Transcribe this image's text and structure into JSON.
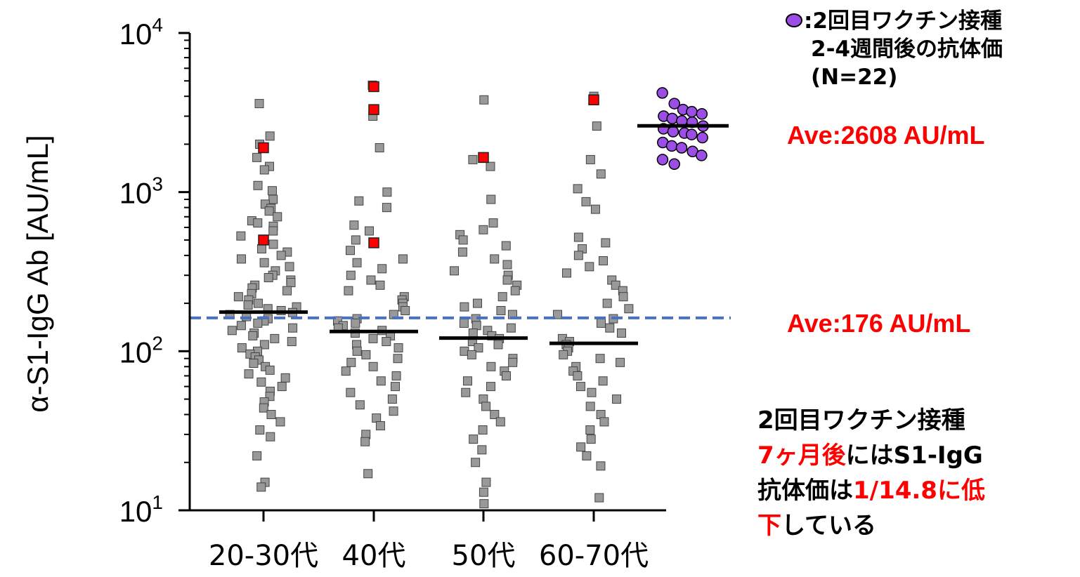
{
  "chart_data": {
    "type": "scatter",
    "subtype": "dot-plot",
    "ylabel": "α-S1-IgG Ab [AU/mL]",
    "yscale": "log",
    "ylim": [
      10,
      10000
    ],
    "yticks": [
      {
        "value": 10,
        "base": "10",
        "exp": "1"
      },
      {
        "value": 100,
        "base": "10",
        "exp": "2"
      },
      {
        "value": 1000,
        "base": "10",
        "exp": "3"
      },
      {
        "value": 10000,
        "base": "10",
        "exp": "4"
      }
    ],
    "categories": [
      "20-30代",
      "40代",
      "50代",
      "60-70代"
    ],
    "series": [
      {
        "mean": 176,
        "highlighted": [
          1900,
          500
        ],
        "values": [
          3600,
          2250,
          2000,
          1650,
          1450,
          1380,
          1100,
          1020,
          900,
          840,
          790,
          760,
          700,
          660,
          640,
          610,
          570,
          530,
          470,
          440,
          420,
          400,
          380,
          360,
          340,
          320,
          300,
          290,
          280,
          270,
          260,
          250,
          240,
          230,
          220,
          210,
          200,
          195,
          190,
          185,
          180,
          175,
          170,
          165,
          160,
          155,
          150,
          145,
          140,
          135,
          130,
          125,
          120,
          115,
          110,
          105,
          100,
          96,
          92,
          88,
          84,
          80,
          76,
          72,
          68,
          64,
          60,
          56,
          52,
          48,
          44,
          40,
          36,
          32,
          29,
          22,
          15,
          14
        ]
      },
      {
        "mean": 133,
        "highlighted": [
          4600,
          3300,
          480
        ],
        "values": [
          4700,
          3000,
          1900,
          1000,
          880,
          800,
          620,
          570,
          500,
          430,
          380,
          360,
          330,
          300,
          280,
          260,
          240,
          220,
          210,
          200,
          190,
          180,
          170,
          160,
          155,
          150,
          145,
          140,
          135,
          130,
          125,
          120,
          115,
          110,
          105,
          100,
          95,
          90,
          85,
          80,
          75,
          70,
          65,
          60,
          55,
          50,
          46,
          42,
          38,
          34,
          30,
          27,
          17
        ]
      },
      {
        "mean": 121,
        "highlighted": [
          1650
        ],
        "values": [
          3800,
          1600,
          1450,
          900,
          640,
          580,
          540,
          500,
          460,
          420,
          380,
          350,
          320,
          300,
          280,
          260,
          240,
          220,
          200,
          190,
          180,
          170,
          160,
          150,
          145,
          140,
          135,
          130,
          125,
          120,
          115,
          110,
          105,
          100,
          95,
          90,
          85,
          80,
          75,
          70,
          65,
          60,
          55,
          50,
          45,
          40,
          36,
          32,
          28,
          24,
          20,
          15,
          13,
          11
        ]
      },
      {
        "mean": 112,
        "highlighted": [
          3800
        ],
        "values": [
          4000,
          2600,
          1600,
          1300,
          1050,
          870,
          780,
          520,
          480,
          440,
          400,
          370,
          340,
          310,
          280,
          260,
          240,
          220,
          200,
          185,
          170,
          160,
          150,
          140,
          130,
          120,
          115,
          110,
          105,
          100,
          95,
          90,
          85,
          80,
          75,
          70,
          65,
          60,
          55,
          50,
          45,
          40,
          36,
          32,
          28,
          25,
          22,
          19,
          12
        ]
      }
    ],
    "reference": {
      "name": ":2回目ワクチン接種",
      "mean": 2608,
      "n": 22,
      "values": [
        4200,
        3600,
        3300,
        3200,
        3100,
        3000,
        2900,
        2800,
        2750,
        2600,
        2500,
        2400,
        2350,
        2300,
        2200,
        2050,
        1950,
        1900,
        1800,
        1700,
        1600,
        1500
      ]
    },
    "reference_line": {
      "value": 162,
      "color": "#4472c4",
      "style": "dashed"
    },
    "colors": {
      "points": "#999999",
      "highlight": "#ff0000",
      "reference": "#9b4de6",
      "mean_bar": "#000000",
      "annotation": "#ff0000"
    }
  },
  "legend": {
    "line1": ":2回目ワクチン接種",
    "line2": "2-4週間後の抗体価",
    "line3": "(N=22)"
  },
  "annotations": {
    "ave_high": "Ave:2608 AU/mL",
    "ave_low": "Ave:176 AU/mL"
  },
  "note": {
    "line1": "2回目ワクチン接種",
    "line2_red": "7ヶ月後",
    "line2_rest": "にはS1-IgG",
    "line3_black": "抗体価は",
    "line3_red": "1/14.8に低",
    "line4_red": "下",
    "line4_rest": "している"
  }
}
